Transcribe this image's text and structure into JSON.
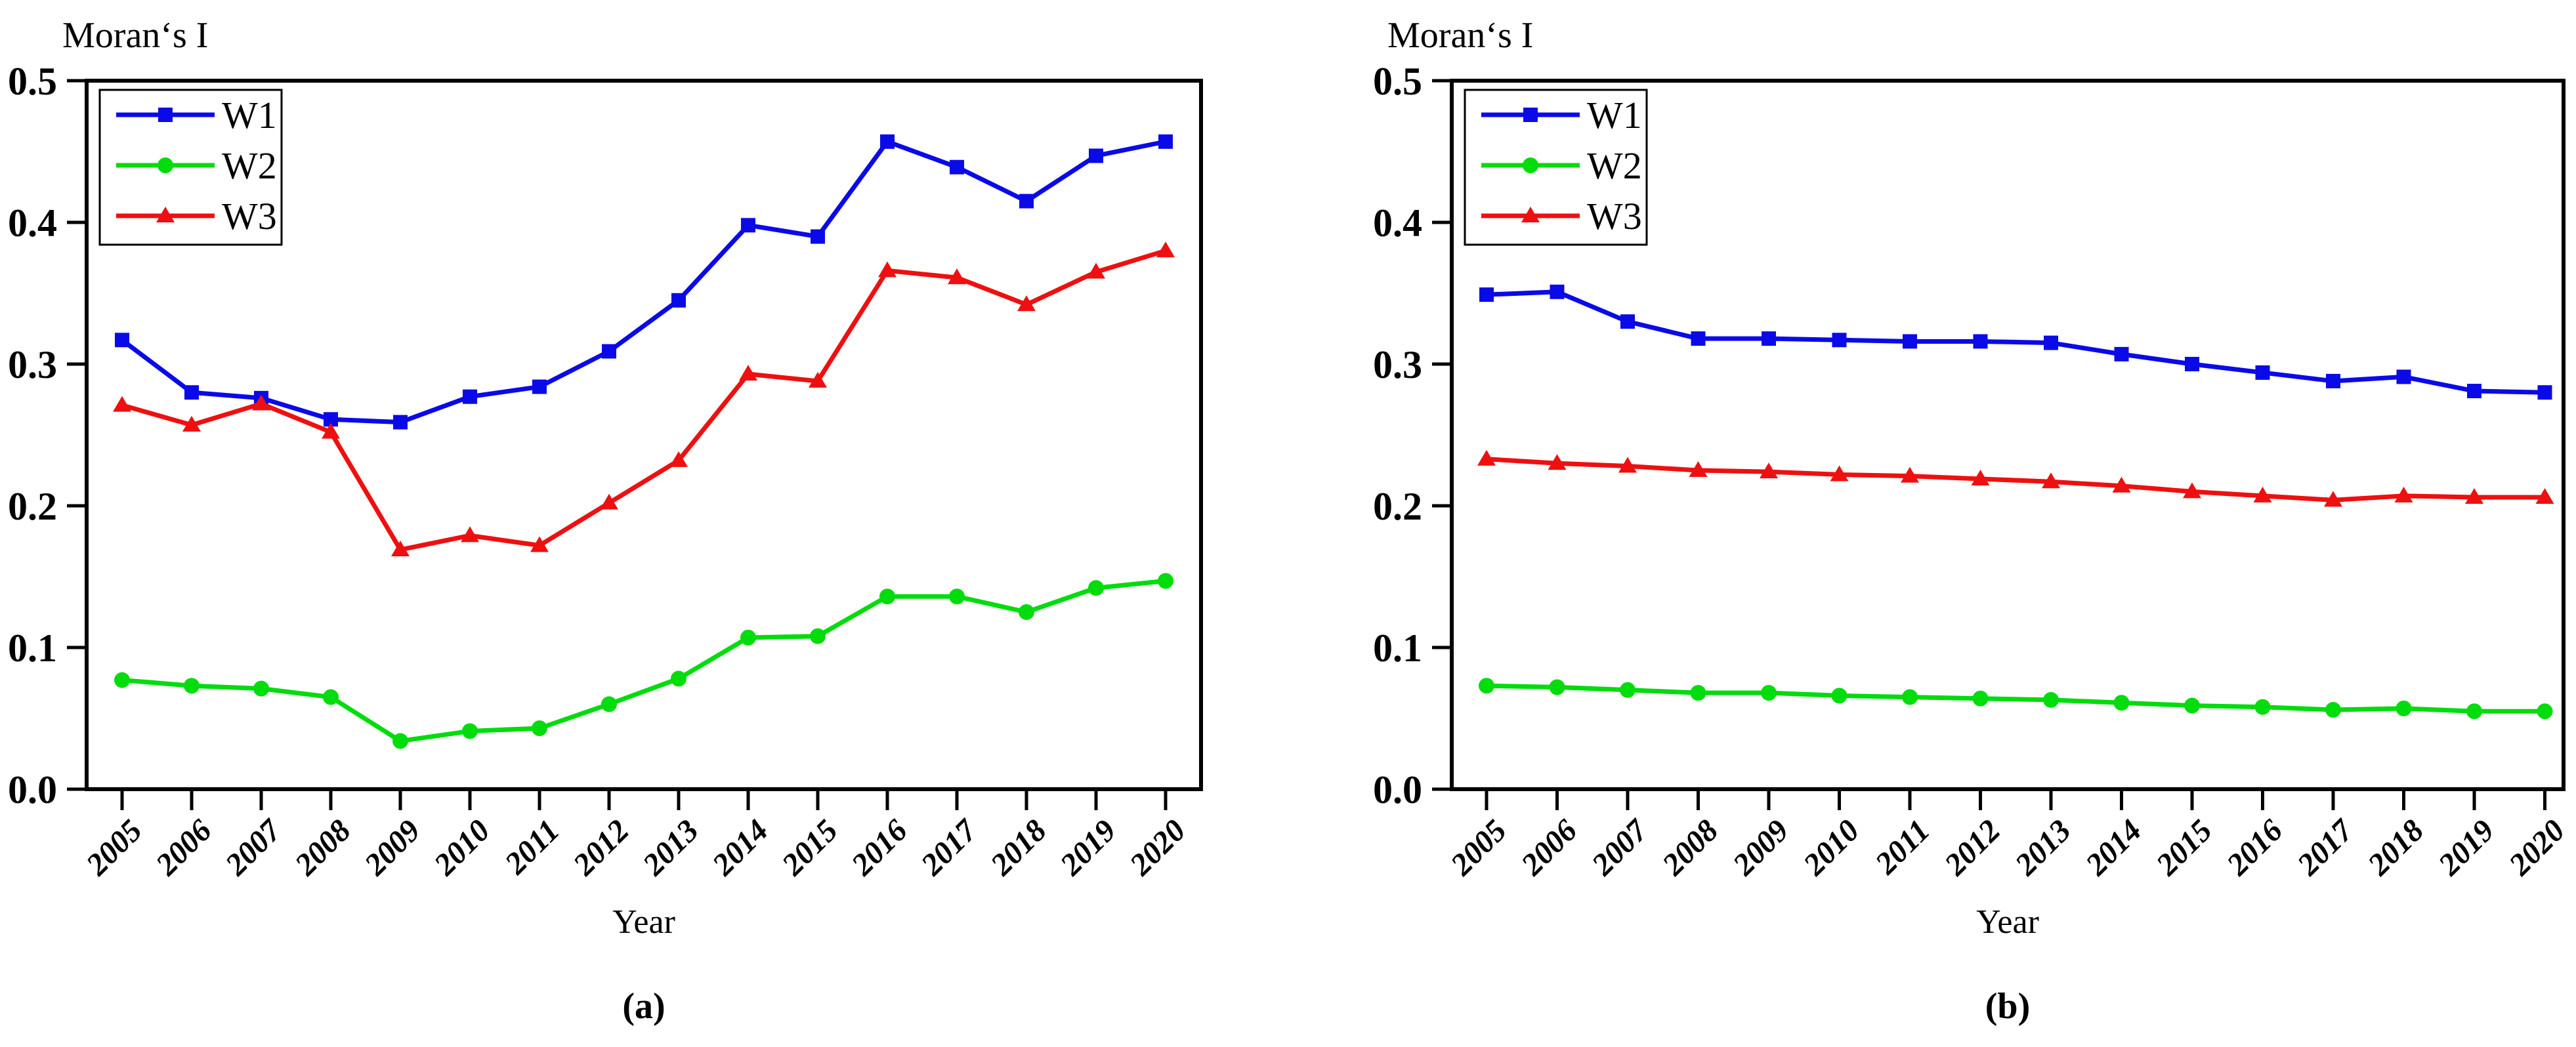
{
  "figure": {
    "axis_color": "#000000",
    "background": "#ffffff"
  },
  "chart_data": [
    {
      "type": "line",
      "title": "Moran‘s I",
      "xlabel": "Year",
      "caption": "(a)",
      "grid": false,
      "legend_position": "top-left",
      "ylim": [
        0.0,
        0.5
      ],
      "yticks": [
        0.0,
        0.1,
        0.2,
        0.3,
        0.4,
        0.5
      ],
      "ytick_labels": [
        "0.0",
        "0.1",
        "0.2",
        "0.3",
        "0.4",
        "0.5"
      ],
      "x": [
        2005,
        2006,
        2007,
        2008,
        2009,
        2010,
        2011,
        2012,
        2013,
        2014,
        2015,
        2016,
        2017,
        2018,
        2019,
        2020
      ],
      "series": [
        {
          "name": "W1",
          "color": "#0A0AE8",
          "marker": "square",
          "values": [
            0.317,
            0.28,
            0.276,
            0.261,
            0.259,
            0.277,
            0.284,
            0.309,
            0.345,
            0.398,
            0.39,
            0.457,
            0.439,
            0.415,
            0.447,
            0.457
          ]
        },
        {
          "name": "W2",
          "color": "#00DC0C",
          "marker": "circle",
          "values": [
            0.077,
            0.073,
            0.071,
            0.065,
            0.034,
            0.041,
            0.043,
            0.06,
            0.078,
            0.107,
            0.108,
            0.136,
            0.136,
            0.125,
            0.142,
            0.147
          ]
        },
        {
          "name": "W3",
          "color": "#EE1010",
          "marker": "triangle",
          "values": [
            0.271,
            0.257,
            0.272,
            0.252,
            0.169,
            0.179,
            0.172,
            0.202,
            0.232,
            0.293,
            0.288,
            0.366,
            0.361,
            0.342,
            0.365,
            0.38
          ]
        }
      ]
    },
    {
      "type": "line",
      "title": "Moran‘s I",
      "xlabel": "Year",
      "caption": "(b)",
      "grid": false,
      "legend_position": "top-left",
      "ylim": [
        0.0,
        0.5
      ],
      "yticks": [
        0.0,
        0.1,
        0.2,
        0.3,
        0.4,
        0.5
      ],
      "ytick_labels": [
        "0.0",
        "0.1",
        "0.2",
        "0.3",
        "0.4",
        "0.5"
      ],
      "x": [
        2005,
        2006,
        2007,
        2008,
        2009,
        2010,
        2011,
        2012,
        2013,
        2014,
        2015,
        2016,
        2017,
        2018,
        2019,
        2020
      ],
      "series": [
        {
          "name": "W1",
          "color": "#0A0AE8",
          "marker": "square",
          "values": [
            0.349,
            0.351,
            0.33,
            0.318,
            0.318,
            0.317,
            0.316,
            0.316,
            0.315,
            0.307,
            0.3,
            0.294,
            0.288,
            0.291,
            0.281,
            0.28
          ]
        },
        {
          "name": "W2",
          "color": "#00DC0C",
          "marker": "circle",
          "values": [
            0.073,
            0.072,
            0.07,
            0.068,
            0.068,
            0.066,
            0.065,
            0.064,
            0.063,
            0.061,
            0.059,
            0.058,
            0.056,
            0.057,
            0.055,
            0.055
          ]
        },
        {
          "name": "W3",
          "color": "#EE1010",
          "marker": "triangle",
          "values": [
            0.233,
            0.23,
            0.228,
            0.225,
            0.224,
            0.222,
            0.221,
            0.219,
            0.217,
            0.214,
            0.21,
            0.207,
            0.204,
            0.207,
            0.206,
            0.206
          ]
        }
      ]
    }
  ]
}
